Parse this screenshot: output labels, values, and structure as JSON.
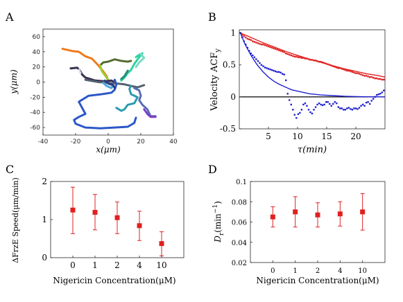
{
  "panels": {
    "A": {
      "label": "A"
    },
    "B": {
      "label": "B"
    },
    "C": {
      "label": "C"
    },
    "D": {
      "label": "D"
    }
  },
  "chart_data": [
    {
      "panel": "A",
      "type": "line",
      "xlabel": "x(μm)",
      "ylabel": "y(μm)",
      "xlim": [
        -40,
        40
      ],
      "ylim": [
        -70,
        70
      ],
      "xticks": [
        "-40",
        "-20",
        "0",
        "20",
        "40"
      ],
      "yticks": [
        "-60",
        "-40",
        "-20",
        "0",
        "20",
        "40",
        "60"
      ],
      "series": [
        {
          "color": "#f07a1a",
          "points": [
            [
              -28,
              44
            ],
            [
              -22,
              41
            ],
            [
              -18,
              40
            ],
            [
              -14,
              34
            ],
            [
              -10,
              31
            ],
            [
              -6,
              22
            ],
            [
              -3,
              14
            ],
            [
              -1,
              8
            ],
            [
              0,
              2
            ]
          ]
        },
        {
          "color": "#556b2f",
          "points": [
            [
              -5,
              22
            ],
            [
              -3,
              26
            ],
            [
              0,
              27
            ],
            [
              4,
              30
            ],
            [
              8,
              28
            ],
            [
              12,
              27
            ],
            [
              14,
              28
            ]
          ]
        },
        {
          "color": "#9acd32",
          "points": [
            [
              -5,
              22
            ],
            [
              -4,
              15
            ],
            [
              -2,
              9
            ],
            [
              0,
              3
            ]
          ]
        },
        {
          "color": "#2dd4a0",
          "points": [
            [
              17,
              33
            ],
            [
              19,
              36
            ],
            [
              21,
              38
            ],
            [
              18,
              30
            ],
            [
              16,
              24
            ],
            [
              14,
              16
            ],
            [
              12,
              12
            ],
            [
              10,
              6
            ],
            [
              8,
              2
            ]
          ]
        },
        {
          "color": "#1e8c7a",
          "points": [
            [
              12,
              15
            ],
            [
              10,
              8
            ],
            [
              8,
              4
            ]
          ]
        },
        {
          "color": "#7fd8c8",
          "points": [
            [
              20,
              37
            ],
            [
              22,
              32
            ],
            [
              19,
              26
            ],
            [
              17,
              20
            ]
          ]
        },
        {
          "color": "#3a3050",
          "points": [
            [
              -23,
              18
            ],
            [
              -19,
              19
            ],
            [
              -17,
              14
            ],
            [
              -16,
              10
            ],
            [
              -14,
              6
            ],
            [
              -8,
              2
            ],
            [
              -2,
              1
            ],
            [
              2,
              2
            ],
            [
              4,
              0
            ]
          ]
        },
        {
          "color": "#556270",
          "points": [
            [
              -14,
              3
            ],
            [
              -6,
              0
            ],
            [
              0,
              -1
            ],
            [
              6,
              -2
            ],
            [
              10,
              -3
            ],
            [
              14,
              -5
            ],
            [
              18,
              -7
            ],
            [
              22,
              -4
            ]
          ]
        },
        {
          "color": "#2b57c8",
          "points": [
            [
              4,
              3
            ],
            [
              5,
              -3
            ],
            [
              4,
              -10
            ],
            [
              2,
              -14
            ],
            [
              -4,
              -16
            ],
            [
              -12,
              -18
            ],
            [
              -18,
              -26
            ],
            [
              -16,
              -34
            ],
            [
              -14,
              -42
            ],
            [
              -18,
              -46
            ],
            [
              -21,
              -50
            ],
            [
              -20,
              -55
            ],
            [
              -14,
              -60
            ],
            [
              -5,
              -61
            ],
            [
              4,
              -60
            ],
            [
              12,
              -59
            ],
            [
              16,
              -54
            ],
            [
              17,
              -47
            ]
          ]
        },
        {
          "color": "#2a9bb0",
          "points": [
            [
              5,
              -34
            ],
            [
              8,
              -38
            ],
            [
              10,
              -36
            ],
            [
              12,
              -30
            ],
            [
              16,
              -28
            ],
            [
              18,
              -20
            ],
            [
              14,
              -16
            ],
            [
              13,
              -9
            ],
            [
              14,
              -5
            ]
          ]
        },
        {
          "color": "#5a6bb5",
          "points": [
            [
              16,
              -8
            ],
            [
              19,
              -11
            ],
            [
              20,
              -18
            ],
            [
              19,
              -24
            ],
            [
              21,
              -30
            ],
            [
              24,
              -36
            ],
            [
              26,
              -45
            ],
            [
              29,
              -45
            ]
          ]
        },
        {
          "color": "#7b3fc8",
          "points": [
            [
              22,
              -36
            ],
            [
              24,
              -42
            ],
            [
              26,
              -46
            ],
            [
              29,
              -46
            ]
          ]
        },
        {
          "color": "#4aa6d8",
          "points": [
            [
              -3,
              -1
            ],
            [
              -1,
              -5
            ],
            [
              2,
              -8
            ],
            [
              3,
              -4
            ]
          ]
        },
        {
          "color": "#e0e0f0",
          "points": [
            [
              -18,
              16
            ],
            [
              -17,
              12
            ]
          ]
        },
        {
          "color": "#2c3e8a",
          "points": [
            [
              -2,
              2
            ],
            [
              0,
              -2
            ],
            [
              3,
              -4
            ],
            [
              4,
              -8
            ]
          ]
        }
      ]
    },
    {
      "panel": "B",
      "type": "scatter",
      "xlabel": "τ(min)",
      "ylabel": "Velocity ACF",
      "ylabel_sub": "y",
      "xlim": [
        0,
        25
      ],
      "ylim": [
        -0.5,
        1.05
      ],
      "xticks": [
        "5",
        "10",
        "15",
        "20"
      ],
      "yticks": [
        "-0.5",
        "0",
        "0.5",
        "1"
      ],
      "reference_line_y": 0,
      "series": [
        {
          "kind": "points",
          "color": "#e02020",
          "x": [
            0.2,
            0.5,
            0.8,
            1.1,
            1.4,
            1.7,
            2.0,
            2.3,
            2.6,
            2.9,
            3.2,
            3.5,
            3.8,
            4.1,
            4.4,
            4.7,
            5.0,
            5.3,
            5.6,
            5.9,
            6.2,
            6.5,
            6.8,
            7.1,
            7.4,
            7.7,
            8.0,
            8.3,
            8.6,
            8.9,
            9.2,
            9.5,
            9.8,
            10.1,
            10.4,
            10.7,
            11.0,
            11.3,
            11.6,
            11.9,
            12.2,
            12.5,
            12.8,
            13.1,
            13.4,
            13.7,
            14.0,
            14.3,
            14.6,
            14.9,
            15.2,
            15.5,
            15.8,
            16.1,
            16.4,
            16.7,
            17.0,
            17.3,
            17.6,
            17.9,
            18.2,
            18.5,
            18.8,
            19.1,
            19.4,
            19.7,
            20.0,
            20.3,
            20.6,
            20.9,
            21.2,
            21.5,
            21.8,
            22.1,
            22.4,
            22.7,
            23.0,
            23.3,
            23.6,
            23.9,
            24.2,
            24.5,
            24.8
          ],
          "y": [
            1.0,
            0.97,
            0.95,
            0.93,
            0.91,
            0.9,
            0.89,
            0.87,
            0.86,
            0.85,
            0.84,
            0.83,
            0.82,
            0.82,
            0.81,
            0.8,
            0.79,
            0.78,
            0.77,
            0.76,
            0.75,
            0.74,
            0.73,
            0.72,
            0.71,
            0.7,
            0.68,
            0.67,
            0.66,
            0.65,
            0.64,
            0.63,
            0.63,
            0.62,
            0.62,
            0.61,
            0.61,
            0.6,
            0.6,
            0.59,
            0.58,
            0.58,
            0.57,
            0.57,
            0.56,
            0.55,
            0.55,
            0.54,
            0.53,
            0.52,
            0.51,
            0.5,
            0.49,
            0.48,
            0.47,
            0.46,
            0.45,
            0.45,
            0.44,
            0.43,
            0.42,
            0.41,
            0.41,
            0.4,
            0.39,
            0.38,
            0.37,
            0.37,
            0.36,
            0.35,
            0.34,
            0.33,
            0.33,
            0.32,
            0.31,
            0.31,
            0.3,
            0.29,
            0.29,
            0.28,
            0.28,
            0.27,
            0.27
          ]
        },
        {
          "kind": "curve",
          "color": "#e02020",
          "x": [
            0.2,
            2,
            4,
            6,
            8,
            10,
            12,
            14,
            16,
            18,
            20,
            22,
            24,
            25
          ],
          "y": [
            1.0,
            0.93,
            0.85,
            0.78,
            0.71,
            0.65,
            0.59,
            0.54,
            0.49,
            0.44,
            0.4,
            0.36,
            0.33,
            0.31
          ]
        },
        {
          "kind": "points",
          "color": "#2020d0",
          "x": [
            0.2,
            0.5,
            0.8,
            1.1,
            1.4,
            1.7,
            2.0,
            2.3,
            2.6,
            2.9,
            3.2,
            3.5,
            3.8,
            4.1,
            4.4,
            4.7,
            5.0,
            5.3,
            5.6,
            5.9,
            6.2,
            6.5,
            6.8,
            7.1,
            7.4,
            7.7,
            8.0,
            8.3,
            8.6,
            8.9,
            9.2,
            9.5,
            9.8,
            10.1,
            10.4,
            10.7,
            11.0,
            11.3,
            11.6,
            11.9,
            12.2,
            12.5,
            12.8,
            13.1,
            13.4,
            13.7,
            14.0,
            14.3,
            14.6,
            14.9,
            15.2,
            15.5,
            15.8,
            16.1,
            16.4,
            16.7,
            17.0,
            17.3,
            17.6,
            17.9,
            18.2,
            18.5,
            18.8,
            19.1,
            19.4,
            19.7,
            20.0,
            20.3,
            20.6,
            20.9,
            21.2,
            21.5,
            21.8,
            22.1,
            22.4,
            22.7,
            23.0,
            23.3,
            23.6,
            23.9,
            24.2,
            24.5,
            24.8
          ],
          "y": [
            1.0,
            0.93,
            0.87,
            0.82,
            0.77,
            0.72,
            0.68,
            0.65,
            0.62,
            0.59,
            0.56,
            0.53,
            0.5,
            0.48,
            0.46,
            0.45,
            0.44,
            0.43,
            0.42,
            0.41,
            0.4,
            0.39,
            0.39,
            0.38,
            0.36,
            0.35,
            0.26,
            0.05,
            -0.05,
            -0.12,
            -0.2,
            -0.28,
            -0.33,
            -0.27,
            -0.25,
            -0.2,
            -0.12,
            -0.1,
            -0.14,
            -0.2,
            -0.24,
            -0.26,
            -0.2,
            -0.16,
            -0.12,
            -0.1,
            -0.12,
            -0.13,
            -0.12,
            -0.08,
            -0.08,
            -0.11,
            -0.14,
            -0.11,
            -0.08,
            -0.1,
            -0.16,
            -0.18,
            -0.18,
            -0.2,
            -0.2,
            -0.18,
            -0.17,
            -0.19,
            -0.2,
            -0.18,
            -0.18,
            -0.19,
            -0.17,
            -0.14,
            -0.12,
            -0.14,
            -0.09,
            -0.08,
            -0.11,
            -0.06,
            -0.03,
            0.0,
            0.03,
            0.04,
            0.05,
            0.07,
            0.1
          ]
        },
        {
          "kind": "curve",
          "color": "#2020d0",
          "x": [
            0.2,
            1,
            2,
            3,
            4,
            5,
            6,
            7,
            8,
            9,
            10,
            12,
            14,
            16,
            18,
            20,
            22,
            24,
            25
          ],
          "y": [
            1.0,
            0.82,
            0.65,
            0.51,
            0.4,
            0.31,
            0.24,
            0.19,
            0.15,
            0.11,
            0.09,
            0.05,
            0.03,
            0.02,
            0.01,
            0.005,
            0.002,
            0.001,
            0.0
          ]
        }
      ]
    },
    {
      "panel": "C",
      "type": "scatter",
      "xlabel": "Nigericin Concentration(μM)",
      "ylabel": "ΔFrzE Speed(μm/min)",
      "categories": [
        "0",
        "1",
        "2",
        "4",
        "10"
      ],
      "ylim": [
        0,
        2
      ],
      "yticks": [
        "0",
        "1",
        "2"
      ],
      "values": [
        1.25,
        1.19,
        1.05,
        0.84,
        0.37
      ],
      "err_low": [
        0.62,
        0.46,
        0.42,
        0.39,
        0.32
      ],
      "err_high": [
        0.6,
        0.47,
        0.41,
        0.38,
        0.31
      ],
      "color": "#e02020"
    },
    {
      "panel": "D",
      "type": "scatter",
      "xlabel": "Nigericin Concentration(μM)",
      "ylabel": "D",
      "ylabel_sub": "r",
      "ylabel_unit": "(min",
      "ylabel_sup": "−1",
      "ylabel_close": ")",
      "categories": [
        "0",
        "1",
        "2",
        "4",
        "10"
      ],
      "ylim": [
        0.02,
        0.1
      ],
      "yticks": [
        "0.02",
        "0.04",
        "0.06",
        "0.08",
        "0.1"
      ],
      "values": [
        0.065,
        0.07,
        0.067,
        0.068,
        0.07
      ],
      "err_low": [
        0.01,
        0.015,
        0.012,
        0.012,
        0.018
      ],
      "err_high": [
        0.01,
        0.015,
        0.012,
        0.012,
        0.018
      ],
      "color": "#e02020"
    }
  ]
}
